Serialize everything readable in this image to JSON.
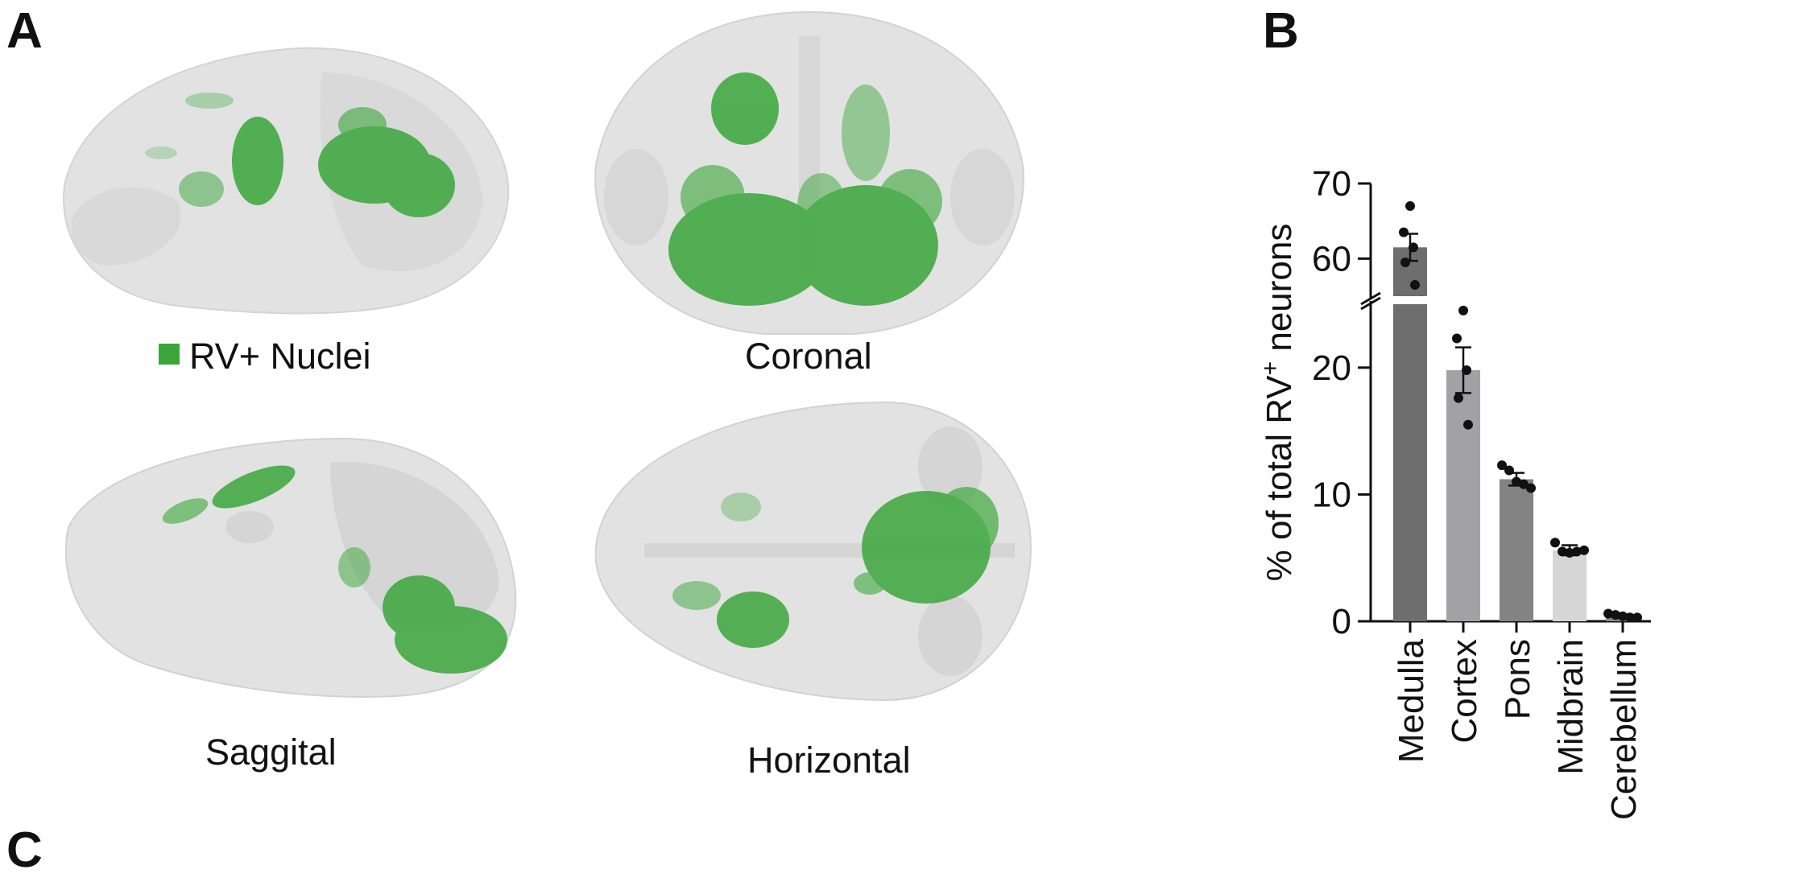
{
  "figure": {
    "panel_a_label": "A",
    "panel_b_label": "B",
    "panel_c_label": "C",
    "legend_label": "RV+ Nuclei",
    "legend_color": "#3aa63a",
    "views": {
      "coronal": "Coronal",
      "saggital": "Saggital",
      "horizontal": "Horizontal"
    },
    "brain_color": "#e3e3e3",
    "label_color": "#3aa63a"
  },
  "chart_data": {
    "type": "bar",
    "categories": [
      "Medulla",
      "Cortex",
      "Pons",
      "Midbrain",
      "Cerebellum"
    ],
    "values": [
      61.5,
      19.8,
      11.2,
      5.6,
      0.4
    ],
    "errors": [
      1.8,
      1.8,
      0.5,
      0.4,
      0.15
    ],
    "points": [
      [
        67,
        63.5,
        61.5,
        59.5,
        56.5
      ],
      [
        24.5,
        22.3,
        19.8,
        17.6,
        15.5
      ],
      [
        12.3,
        11.9,
        11.0,
        10.8,
        10.5
      ],
      [
        6.2,
        5.5,
        5.4,
        5.5,
        5.6
      ],
      [
        0.6,
        0.5,
        0.4,
        0.3,
        0.3
      ]
    ],
    "bar_colors": [
      "#6e6e6e",
      "#a2a2a4",
      "#838384",
      "#d6d6d6",
      "#888888"
    ],
    "ylabel_prefix": "% of total RV",
    "ylabel_sup": "+",
    "ylabel_suffix": " neurons",
    "ytick_labels_lower": [
      "0",
      "10",
      "20"
    ],
    "ytick_labels_upper": [
      "60",
      "70"
    ],
    "lower_ylim": [
      0,
      25
    ],
    "upper_ylim": [
      55,
      70
    ],
    "grid": false,
    "axis_break": true
  }
}
